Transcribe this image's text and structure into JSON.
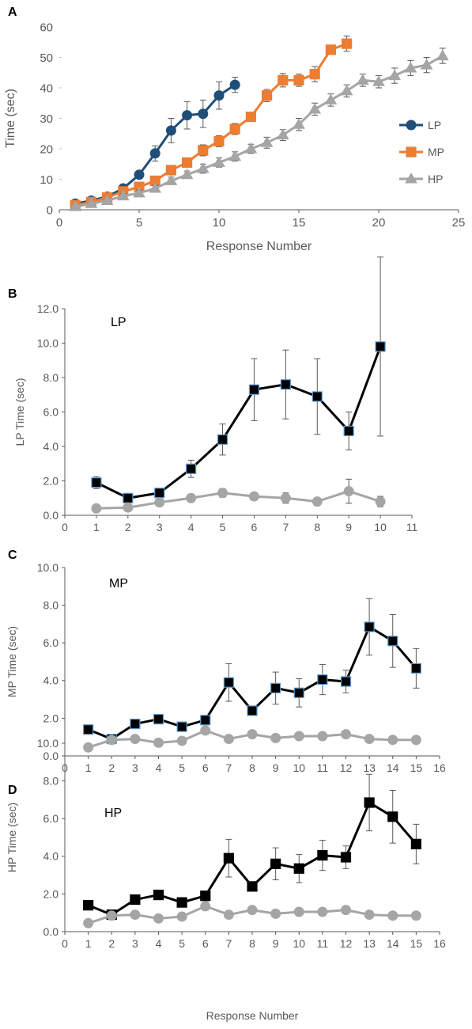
{
  "colors": {
    "lp": "#1f4e79",
    "mp": "#ed7d31",
    "hp": "#a5a5a5",
    "black": "#000000",
    "gray_marker": "#a5a5a5",
    "axis": "#595959",
    "square_edge": "#5b9bd5"
  },
  "chart_data": [
    {
      "panel": "A",
      "type": "line",
      "xlabel": "Response Number",
      "ylabel": "Time (sec)",
      "xlim": [
        0,
        25
      ],
      "ylim": [
        0,
        60
      ],
      "xticks": [
        "0",
        "5",
        "10",
        "15",
        "20",
        "25"
      ],
      "yticks": [
        "0",
        "10",
        "20",
        "30",
        "40",
        "50",
        "60"
      ],
      "legend_position": "right",
      "series": [
        {
          "name": "LP",
          "marker": "circle",
          "color": "#1f4e79",
          "x": [
            1,
            2,
            3,
            4,
            5,
            6,
            7,
            8,
            9,
            10,
            11
          ],
          "y": [
            2.0,
            3.0,
            4.3,
            7.0,
            11.5,
            18.5,
            26.0,
            31.0,
            31.5,
            37.5,
            41.0
          ],
          "err": [
            0.5,
            0.8,
            0.8,
            1.0,
            1.2,
            2.5,
            4.0,
            4.5,
            4.5,
            4.5,
            2.5
          ]
        },
        {
          "name": "MP",
          "marker": "square",
          "color": "#ed7d31",
          "x": [
            1,
            2,
            3,
            4,
            5,
            6,
            7,
            8,
            9,
            10,
            11,
            12,
            13,
            14,
            15,
            16,
            17,
            18
          ],
          "y": [
            1.5,
            2.5,
            4.0,
            6.0,
            7.5,
            9.5,
            13.0,
            15.5,
            19.5,
            22.5,
            26.5,
            30.5,
            37.5,
            42.5,
            42.5,
            44.5,
            52.5,
            54.5
          ],
          "err": [
            0.4,
            0.6,
            0.8,
            1.0,
            1.2,
            1.2,
            1.5,
            1.5,
            1.8,
            1.8,
            1.8,
            1.5,
            2.0,
            2.2,
            2.0,
            2.5,
            1.5,
            2.5
          ]
        },
        {
          "name": "HP",
          "marker": "triangle",
          "color": "#a5a5a5",
          "x": [
            1,
            2,
            3,
            4,
            5,
            6,
            7,
            8,
            9,
            10,
            11,
            12,
            13,
            14,
            15,
            16,
            17,
            18,
            19,
            20,
            21,
            22,
            23,
            24
          ],
          "y": [
            1.0,
            2.0,
            3.0,
            4.5,
            5.5,
            7.0,
            9.5,
            11.5,
            13.5,
            15.5,
            17.5,
            20.0,
            22.0,
            24.5,
            28.0,
            33.0,
            36.0,
            39.0,
            42.5,
            42.0,
            44.0,
            46.5,
            47.5,
            50.5
          ],
          "err": [
            0.3,
            0.5,
            0.6,
            0.8,
            1.0,
            1.0,
            1.2,
            1.2,
            1.5,
            1.5,
            1.5,
            1.5,
            1.8,
            1.8,
            2.0,
            2.0,
            2.0,
            2.0,
            2.0,
            2.0,
            2.5,
            2.5,
            2.5,
            2.5
          ]
        }
      ]
    },
    {
      "panel": "B",
      "type": "line",
      "inset_label": "LP",
      "xlabel": "",
      "ylabel": "LP Time (sec)",
      "xlim": [
        0,
        11
      ],
      "ylim": [
        0,
        12
      ],
      "xticks": [
        "0",
        "1",
        "2",
        "3",
        "4",
        "5",
        "6",
        "7",
        "8",
        "9",
        "10",
        "11"
      ],
      "yticks": [
        "0.0",
        "2.0",
        "4.0",
        "6.0",
        "8.0",
        "10.0",
        "12.0"
      ],
      "series": [
        {
          "marker": "square",
          "color": "#000000",
          "x": [
            1,
            2,
            3,
            4,
            5,
            6,
            7,
            8,
            9,
            10
          ],
          "y": [
            1.9,
            1.0,
            1.3,
            2.7,
            4.4,
            7.3,
            7.6,
            6.9,
            4.9,
            9.8
          ],
          "err": [
            0.35,
            0.15,
            0.15,
            0.5,
            0.9,
            1.8,
            2.0,
            2.2,
            1.1,
            5.2
          ]
        },
        {
          "marker": "circle",
          "color": "#a5a5a5",
          "x": [
            1,
            2,
            3,
            4,
            5,
            6,
            7,
            8,
            9,
            10
          ],
          "y": [
            0.4,
            0.45,
            0.75,
            1.0,
            1.3,
            1.1,
            1.0,
            0.8,
            1.4,
            0.8
          ],
          "err": [
            0.1,
            0.1,
            0.12,
            0.12,
            0.25,
            0.2,
            0.3,
            0.1,
            0.7,
            0.3
          ]
        }
      ]
    },
    {
      "panel": "C",
      "type": "line",
      "inset_label": "MP",
      "xlabel": "",
      "ylabel": "MP Time (sec)",
      "xlim": [
        0,
        16
      ],
      "ylim": [
        0,
        10
      ],
      "xticks": [
        "0",
        "1",
        "2",
        "3",
        "4",
        "5",
        "6",
        "7",
        "8",
        "9",
        "10",
        "11",
        "12",
        "13",
        "14",
        "15",
        "16"
      ],
      "yticks": [
        "0.0",
        "2.0",
        "4.0",
        "6.0",
        "8.0",
        "10.0"
      ],
      "series": [
        {
          "marker": "square",
          "color": "#000000",
          "x": [
            1,
            2,
            3,
            4,
            5,
            6,
            7,
            8,
            9,
            10,
            11,
            12,
            13,
            14,
            15
          ],
          "y": [
            1.4,
            0.9,
            1.7,
            1.95,
            1.55,
            1.9,
            3.9,
            2.4,
            3.6,
            3.35,
            4.05,
            3.95,
            6.85,
            6.1,
            4.65
          ],
          "err": [
            0.15,
            0.1,
            0.2,
            0.25,
            0.15,
            0.25,
            1.0,
            0.2,
            0.85,
            0.75,
            0.8,
            0.6,
            1.5,
            1.4,
            1.05
          ]
        },
        {
          "marker": "circle",
          "color": "#a5a5a5",
          "x": [
            1,
            2,
            3,
            4,
            5,
            6,
            7,
            8,
            9,
            10,
            11,
            12,
            13,
            14,
            15
          ],
          "y": [
            0.45,
            0.85,
            0.9,
            0.7,
            0.8,
            1.35,
            0.9,
            1.15,
            0.95,
            1.05,
            1.05,
            1.15,
            0.9,
            0.85,
            0.85
          ],
          "err": [
            0.08,
            0.1,
            0.1,
            0.08,
            0.08,
            0.2,
            0.08,
            0.15,
            0.08,
            0.08,
            0.08,
            0.1,
            0.08,
            0.08,
            0.08
          ]
        }
      ]
    },
    {
      "panel": "D",
      "type": "line",
      "inset_label": "HP",
      "xlabel": "Response Number",
      "ylabel": "HP Time (sec)",
      "xlim": [
        0,
        16
      ],
      "ylim": [
        0,
        10
      ],
      "xticks": [
        "0",
        "1",
        "2",
        "3",
        "4",
        "5",
        "6",
        "7",
        "8",
        "9",
        "10",
        "11",
        "12",
        "13",
        "14",
        "15",
        "16"
      ],
      "yticks": [
        "0.0",
        "2.0",
        "4.0",
        "6.0",
        "8.0",
        "10.0"
      ],
      "series": [
        {
          "marker": "square",
          "color": "#000000",
          "x": [
            1,
            2,
            3,
            4,
            5,
            6,
            7,
            8,
            9,
            10,
            11,
            12,
            13,
            14,
            15
          ],
          "y": [
            1.4,
            0.9,
            1.7,
            1.95,
            1.55,
            1.9,
            3.9,
            2.4,
            3.6,
            3.35,
            4.05,
            3.95,
            6.85,
            6.1,
            4.65
          ],
          "err": [
            0.15,
            0.1,
            0.2,
            0.25,
            0.15,
            0.25,
            1.0,
            0.2,
            0.85,
            0.75,
            0.8,
            0.6,
            1.5,
            1.4,
            1.05
          ]
        },
        {
          "marker": "circle",
          "color": "#a5a5a5",
          "x": [
            1,
            2,
            3,
            4,
            5,
            6,
            7,
            8,
            9,
            10,
            11,
            12,
            13,
            14,
            15
          ],
          "y": [
            0.45,
            0.85,
            0.9,
            0.7,
            0.8,
            1.35,
            0.9,
            1.15,
            0.95,
            1.05,
            1.05,
            1.15,
            0.9,
            0.85,
            0.85
          ],
          "err": [
            0.08,
            0.1,
            0.1,
            0.08,
            0.08,
            0.2,
            0.08,
            0.15,
            0.08,
            0.08,
            0.08,
            0.1,
            0.08,
            0.08,
            0.08
          ]
        }
      ]
    }
  ]
}
